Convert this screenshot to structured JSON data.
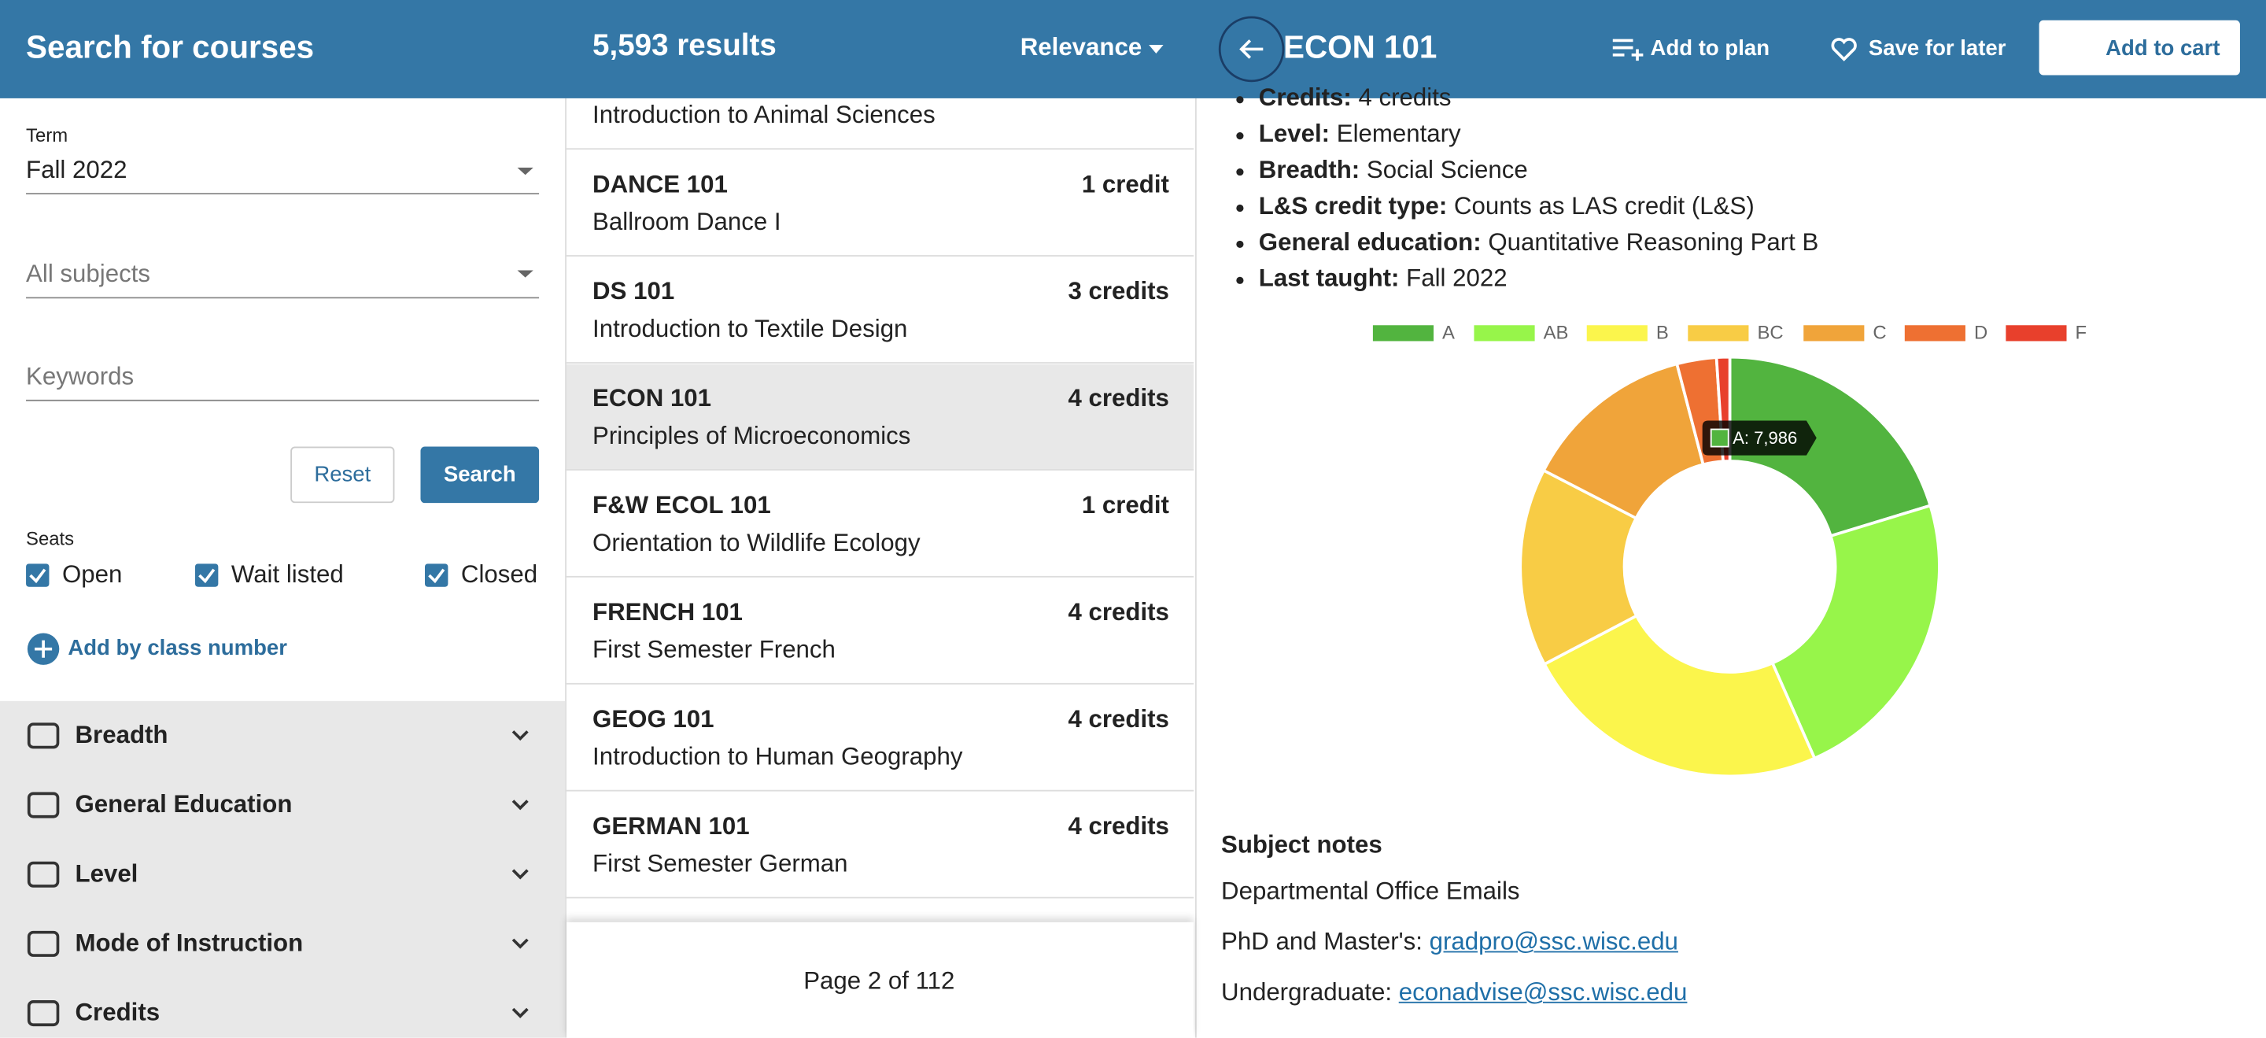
{
  "header": {
    "title": "Search for courses",
    "results": "5,593 results",
    "sort": "Relevance",
    "course": "ECON 101",
    "actions": [
      "Add to plan",
      "Save for later",
      "Add to cart"
    ]
  },
  "filters": {
    "term_label": "Term",
    "term": "Fall 2022",
    "subject": "All subjects",
    "keywords": "Keywords",
    "reset": "Reset",
    "search": "Search",
    "seats_label": "Seats",
    "seats": [
      "Open",
      "Wait listed",
      "Closed"
    ],
    "add_by_number": "Add by class number",
    "sections": [
      "Breadth",
      "General Education",
      "Level",
      "Mode of Instruction",
      "Credits"
    ]
  },
  "results": {
    "partial": "Introduction to Animal Sciences",
    "courses": [
      {
        "code": "DANCE 101",
        "credits": "1 credit",
        "title": "Ballroom Dance I"
      },
      {
        "code": "DS 101",
        "credits": "3 credits",
        "title": "Introduction to Textile Design"
      },
      {
        "code": "ECON 101",
        "credits": "4 credits",
        "title": "Principles of Microeconomics"
      },
      {
        "code": "F&W ECOL 101",
        "credits": "1 credit",
        "title": "Orientation to Wildlife Ecology"
      },
      {
        "code": "FRENCH 101",
        "credits": "4 credits",
        "title": "First Semester French"
      },
      {
        "code": "GEOG 101",
        "credits": "4 credits",
        "title": "Introduction to Human Geography"
      },
      {
        "code": "GERMAN 101",
        "credits": "4 credits",
        "title": "First Semester German"
      }
    ],
    "page": "Page 2 of 112"
  },
  "details": {
    "facts": [
      {
        "label": "Credits:",
        "text": "4 credits"
      },
      {
        "label": "Level:",
        "text": "Elementary"
      },
      {
        "label": "Breadth:",
        "text": "Social Science"
      },
      {
        "label": "L&S credit type:",
        "text": "Counts as LAS credit (L&S)"
      },
      {
        "label": "General education:",
        "text": "Quantitative Reasoning Part B"
      },
      {
        "label": "Last taught:",
        "text": "Fall 2022"
      }
    ],
    "notes_title": "Subject notes",
    "notes_intro": "Departmental Office Emails",
    "contacts": [
      {
        "label": "PhD and Master's:",
        "email": "gradpro@ssc.wisc.edu"
      },
      {
        "label": "Undergraduate:",
        "email": "econadvise@ssc.wisc.edu"
      }
    ]
  },
  "chart_data": {
    "type": "donut",
    "categories": [
      "A",
      "AB",
      "B",
      "BC",
      "C",
      "D",
      "F"
    ],
    "values": [
      7986,
      9080,
      9410,
      6020,
      5250,
      1200,
      400
    ],
    "colors": [
      "#52b43f",
      "#97f54a",
      "#fbf54c",
      "#f8cc45",
      "#f0a43a",
      "#ee7032",
      "#e8402c"
    ],
    "legend": "top",
    "tooltip": "A: 7,986"
  }
}
